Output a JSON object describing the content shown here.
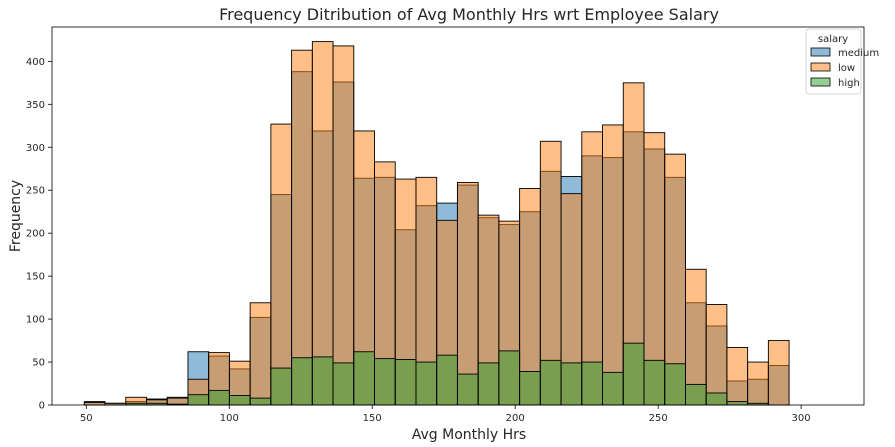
{
  "chart_data": {
    "type": "bar",
    "title": "Frequency Ditribution of Avg Monthly Hrs wrt Employee Salary",
    "xlabel": "Avg Monthly Hrs",
    "ylabel": "Frequency",
    "xlim": [
      38,
      322
    ],
    "ylim": [
      0,
      440
    ],
    "xticks": [
      50,
      100,
      150,
      200,
      250,
      300
    ],
    "yticks": [
      0,
      50,
      100,
      150,
      200,
      250,
      300,
      350,
      400
    ],
    "bin_start": 49.3,
    "bin_width": 7.25,
    "legend": {
      "title": "salary",
      "position": "top-right"
    },
    "series": [
      {
        "name": "medium",
        "color": "#1f77b4",
        "values": [
          4,
          2,
          4,
          7,
          9,
          62,
          57,
          42,
          102,
          245,
          388,
          319,
          376,
          264,
          265,
          204,
          232,
          235,
          256,
          218,
          210,
          225,
          272,
          266,
          290,
          288,
          318,
          298,
          265,
          119,
          92,
          28,
          30,
          46
        ]
      },
      {
        "name": "low",
        "color": "#ff7f0e",
        "values": [
          3,
          2,
          9,
          6,
          8,
          30,
          61,
          51,
          119,
          327,
          413,
          423,
          418,
          319,
          283,
          263,
          265,
          215,
          259,
          221,
          214,
          252,
          307,
          246,
          318,
          326,
          375,
          317,
          292,
          158,
          117,
          67,
          50,
          75
        ]
      },
      {
        "name": "high",
        "color": "#2ca02c",
        "values": [
          0,
          0,
          2,
          2,
          1,
          12,
          17,
          11,
          8,
          43,
          55,
          56,
          49,
          62,
          54,
          53,
          50,
          58,
          36,
          49,
          63,
          39,
          52,
          49,
          50,
          38,
          72,
          52,
          48,
          24,
          14,
          4,
          2,
          0
        ]
      }
    ]
  }
}
